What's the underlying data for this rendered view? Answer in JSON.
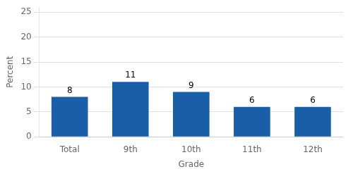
{
  "chart_data": {
    "type": "bar",
    "categories": [
      "Total",
      "9th",
      "10th",
      "11th",
      "12th"
    ],
    "values": [
      8,
      11,
      9,
      6,
      6
    ],
    "color": "#1a5ea8",
    "xlabel": "Grade",
    "ylabel": "Percent",
    "ylim": [
      0,
      26
    ],
    "yticks": [
      0,
      5,
      10,
      15,
      20,
      25
    ],
    "grid": true,
    "data_labels": true
  }
}
